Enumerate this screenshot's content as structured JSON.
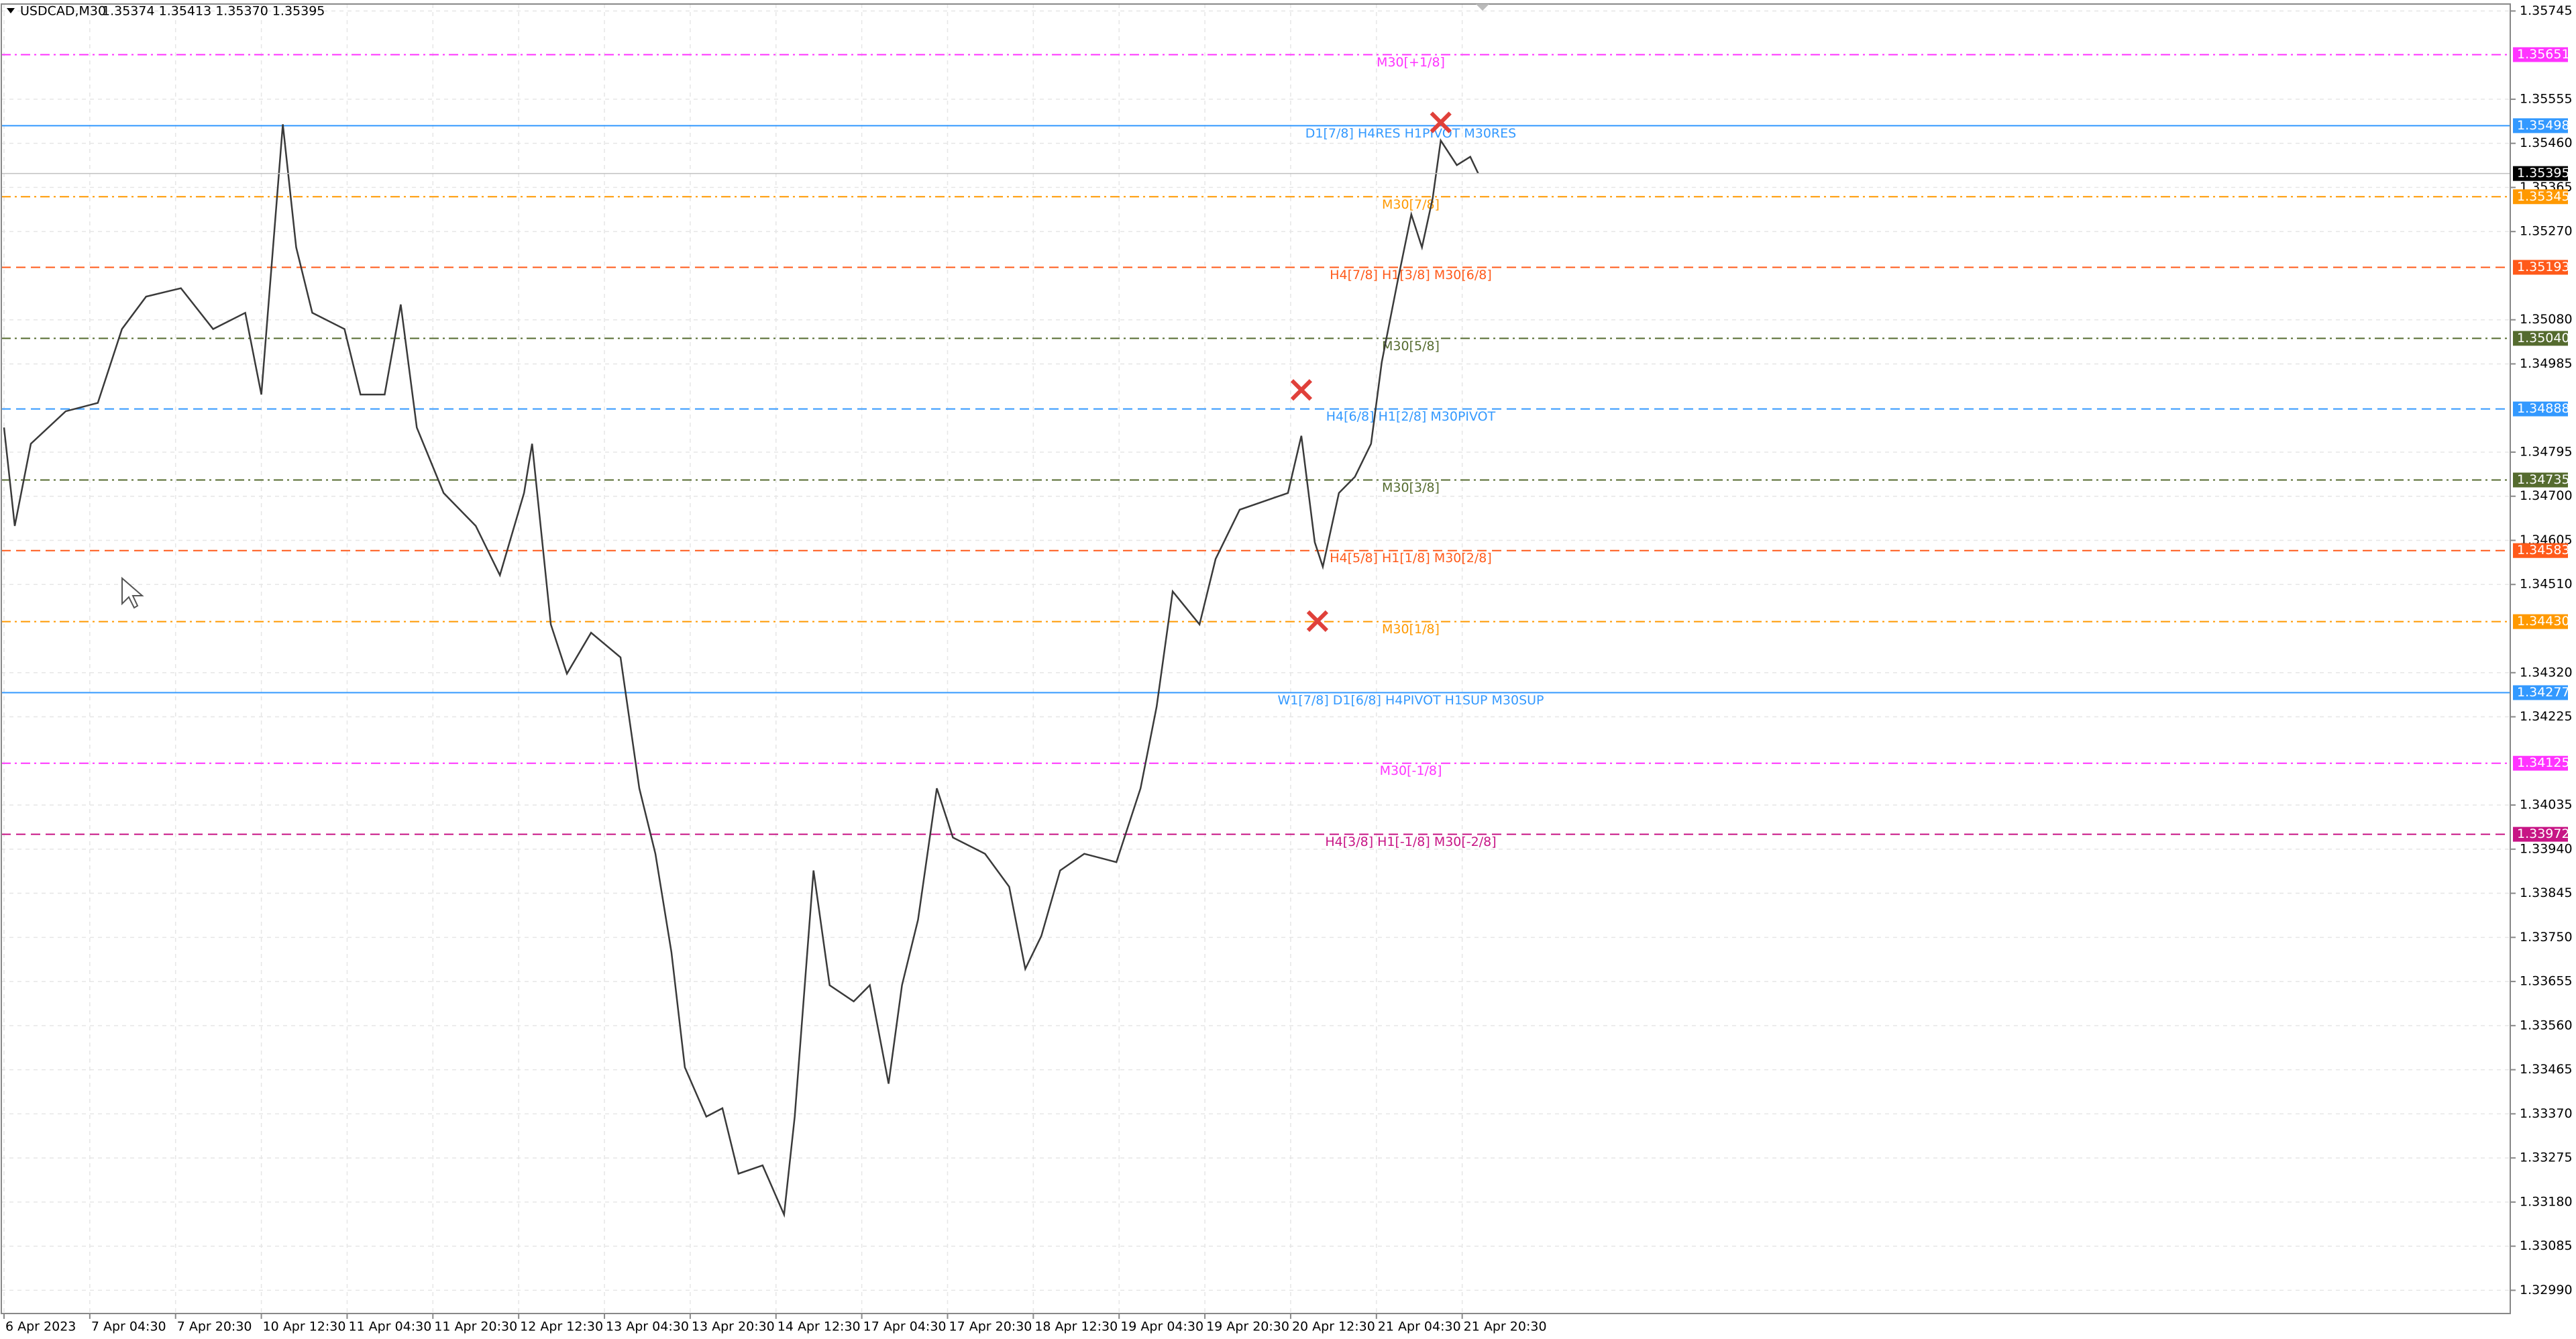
{
  "chart_data": {
    "type": "line",
    "header": {
      "symbol": "USDCAD,M30",
      "quote": "1.35374 1.35413 1.35370 1.35395"
    },
    "xlim": [
      -1,
      935
    ],
    "ylim": [
      1.3294,
      1.3576
    ],
    "grid": true,
    "xticks": [
      {
        "value": 0,
        "label": "6 Apr 2023"
      },
      {
        "value": 32,
        "label": "7 Apr 04:30"
      },
      {
        "value": 64,
        "label": "7 Apr 20:30"
      },
      {
        "value": 96,
        "label": "10 Apr 12:30"
      },
      {
        "value": 128,
        "label": "11 Apr 04:30"
      },
      {
        "value": 160,
        "label": "11 Apr 20:30"
      },
      {
        "value": 192,
        "label": "12 Apr 12:30"
      },
      {
        "value": 224,
        "label": "13 Apr 04:30"
      },
      {
        "value": 256,
        "label": "13 Apr 20:30"
      },
      {
        "value": 288,
        "label": "14 Apr 12:30"
      },
      {
        "value": 320,
        "label": "17 Apr 04:30"
      },
      {
        "value": 352,
        "label": "17 Apr 20:30"
      },
      {
        "value": 384,
        "label": "18 Apr 12:30"
      },
      {
        "value": 416,
        "label": "19 Apr 04:30"
      },
      {
        "value": 448,
        "label": "19 Apr 20:30"
      },
      {
        "value": 480,
        "label": "20 Apr 12:30"
      },
      {
        "value": 512,
        "label": "21 Apr 04:30"
      },
      {
        "value": 544,
        "label": "21 Apr 20:30"
      }
    ],
    "yticks": [
      1.35745,
      1.35555,
      {
        "value": 1.3546,
        "label": "1.35460"
      },
      1.35365,
      {
        "value": 1.3527,
        "label": "1.35270"
      },
      {
        "value": 1.3508,
        "label": "1.35080"
      },
      1.34985,
      1.34795,
      {
        "value": 1.347,
        "label": "1.34700"
      },
      1.34605,
      {
        "value": 1.3451,
        "label": "1.34510"
      },
      {
        "value": 1.3432,
        "label": "1.34320"
      },
      1.34225,
      1.34035,
      {
        "value": 1.3394,
        "label": "1.33940"
      },
      1.33845,
      {
        "value": 1.3375,
        "label": "1.33750"
      },
      1.33655,
      {
        "value": 1.3356,
        "label": "1.33560"
      },
      1.33465,
      {
        "value": 1.3337,
        "label": "1.33370"
      },
      1.33275,
      {
        "value": 1.3318,
        "label": "1.33180"
      },
      1.33085,
      {
        "value": 1.3299,
        "label": "1.32990"
      }
    ],
    "series": [
      {
        "name": "USDCAD",
        "color": "#3a3a3a",
        "x": [
          0,
          4,
          10,
          23,
          35,
          44,
          53,
          66,
          78,
          90,
          96,
          104,
          109,
          115,
          127,
          133,
          142,
          148,
          154,
          164,
          176,
          185,
          194,
          197,
          204,
          210,
          219,
          230,
          237,
          243,
          249,
          254,
          262,
          268,
          274,
          283,
          291,
          295,
          302,
          308,
          317,
          323,
          330,
          335,
          341,
          348,
          354,
          366,
          375,
          381,
          387,
          394,
          403,
          415,
          424,
          430,
          436,
          446,
          452,
          461,
          470,
          479,
          484,
          489,
          492,
          498,
          504,
          510,
          514,
          520,
          525,
          529,
          533,
          536,
          542,
          547,
          550
        ],
        "values": [
          1.34848,
          1.34636,
          1.34813,
          1.34883,
          1.34901,
          1.3506,
          1.3513,
          1.35148,
          1.3506,
          1.35095,
          1.34919,
          1.35501,
          1.35236,
          1.35095,
          1.3506,
          1.34919,
          1.34919,
          1.35113,
          1.34848,
          1.34707,
          1.34636,
          1.3453,
          1.34707,
          1.34813,
          1.34424,
          1.34318,
          1.34406,
          1.34353,
          1.34071,
          1.3393,
          1.33718,
          1.3347,
          1.33364,
          1.33382,
          1.33241,
          1.33259,
          1.33153,
          1.33364,
          1.33894,
          1.33647,
          1.33612,
          1.33647,
          1.33435,
          1.33647,
          1.33788,
          1.34071,
          1.33965,
          1.3393,
          1.33859,
          1.33682,
          1.33753,
          1.33894,
          1.3393,
          1.33912,
          1.34071,
          1.34247,
          1.34495,
          1.34424,
          1.34565,
          1.34671,
          1.34689,
          1.34707,
          1.3483,
          1.34601,
          1.34548,
          1.34707,
          1.34742,
          1.34813,
          1.34989,
          1.35166,
          1.35307,
          1.35236,
          1.35342,
          1.35466,
          1.35413,
          1.35431,
          1.35395
        ]
      }
    ],
    "last_price": {
      "value": 1.35395,
      "color": "#000000"
    },
    "levels": [
      {
        "price": 1.35651,
        "text": "M30[+1/8]",
        "color": "#ff33ff",
        "style": "dashdot"
      },
      {
        "price": 1.35498,
        "text": "D1[7/8] H4RES H1PIVOT M30RES",
        "color": "#3399ff",
        "style": "solid"
      },
      {
        "price": 1.35345,
        "text": "M30[7/8]",
        "color": "#ff9900",
        "style": "dashdot"
      },
      {
        "price": 1.35193,
        "text": "H4[7/8] H1[3/8] M30[6/8]",
        "color": "#ff5a1a",
        "style": "dash"
      },
      {
        "price": 1.3504,
        "price_label": "1.35040",
        "text": "M30[5/8]",
        "color": "#556b2f",
        "style": "dashdot"
      },
      {
        "price": 1.34888,
        "text": "H4[6/8] H1[2/8] M30PIVOT",
        "color": "#3399ff",
        "style": "dash"
      },
      {
        "price": 1.34735,
        "text": "M30[3/8]",
        "color": "#556b2f",
        "style": "dashdot"
      },
      {
        "price": 1.34583,
        "text": "H4[5/8] H1[1/8] M30[2/8]",
        "color": "#ff5a1a",
        "style": "dash"
      },
      {
        "price": 1.3443,
        "price_label": "1.34430",
        "text": "M30[1/8]",
        "color": "#ff9900",
        "style": "dashdot"
      },
      {
        "price": 1.34277,
        "text": "W1[7/8] D1[6/8] H4PIVOT H1SUP M30SUP",
        "color": "#3399ff",
        "style": "solid"
      },
      {
        "price": 1.34125,
        "text": "M30[-1/8]",
        "color": "#ff33ff",
        "style": "dashdot"
      },
      {
        "price": 1.33972,
        "text": "H4[3/8] H1[-1/8] M30[-2/8]",
        "color": "#c71585",
        "style": "dash"
      }
    ],
    "markers": [
      {
        "x": 536,
        "price": 1.35505,
        "color": "#e0403a"
      },
      {
        "x": 484,
        "price": 1.34929,
        "color": "#e0403a"
      },
      {
        "x": 490,
        "price": 1.34431,
        "color": "#e0403a"
      }
    ]
  }
}
